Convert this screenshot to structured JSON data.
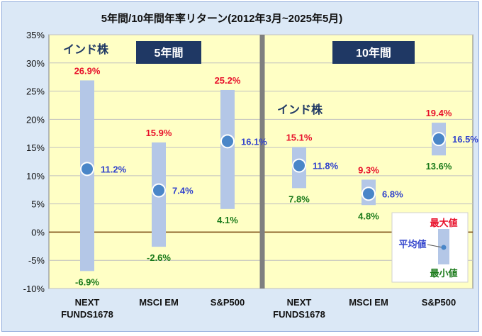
{
  "chart_data": {
    "type": "range",
    "title": "5年間/10年間年率リターン(2012年3月~2025年5月)",
    "ylim": [
      -10,
      35
    ],
    "y_ticks": [
      -10,
      -5,
      0,
      5,
      10,
      15,
      20,
      25,
      30,
      35
    ],
    "y_tick_labels": [
      "-10%",
      "-5%",
      "0%",
      "5%",
      "10%",
      "15%",
      "20%",
      "25%",
      "30%",
      "35%"
    ],
    "grid": "horizontal",
    "unit": "%",
    "panels": [
      {
        "label": "5年間",
        "annotation": "インド株",
        "categories": [
          {
            "name": "NEXT FUNDS1678",
            "lines": [
              "NEXT",
              "FUNDS1678"
            ],
            "max": 26.9,
            "mean": 11.2,
            "min": -6.9
          },
          {
            "name": "MSCI EM",
            "lines": [
              "MSCI EM"
            ],
            "max": 15.9,
            "mean": 7.4,
            "min": -2.6
          },
          {
            "name": "S&P500",
            "lines": [
              "S&P500"
            ],
            "max": 25.2,
            "mean": 16.1,
            "min": 4.1
          }
        ]
      },
      {
        "label": "10年間",
        "annotation": "インド株",
        "categories": [
          {
            "name": "NEXT FUNDS1678",
            "lines": [
              "NEXT",
              "FUNDS1678"
            ],
            "max": 15.1,
            "mean": 11.8,
            "min": 7.8
          },
          {
            "name": "MSCI EM",
            "lines": [
              "MSCI EM"
            ],
            "max": 9.3,
            "mean": 6.8,
            "min": 4.8
          },
          {
            "name": "S&P500",
            "lines": [
              "S&P500"
            ],
            "max": 19.4,
            "mean": 16.5,
            "min": 13.6
          }
        ]
      }
    ],
    "legend": {
      "max": "最大値",
      "mean": "平均値",
      "min": "最小値",
      "placement": "bottom-right"
    }
  },
  "colors": {
    "plot_bg": "#ffffc5",
    "frame_bg": "#dbe8f6",
    "range_bar": "#b4c7e7",
    "mean_point": "#4a86c8",
    "max_label": "#e8102a",
    "mean_label": "#3344cc",
    "min_label": "#1a7a1a",
    "panel_label_bg": "#1f3864",
    "annotation_text": "#1f3864",
    "divider": "#7f7f7f"
  }
}
